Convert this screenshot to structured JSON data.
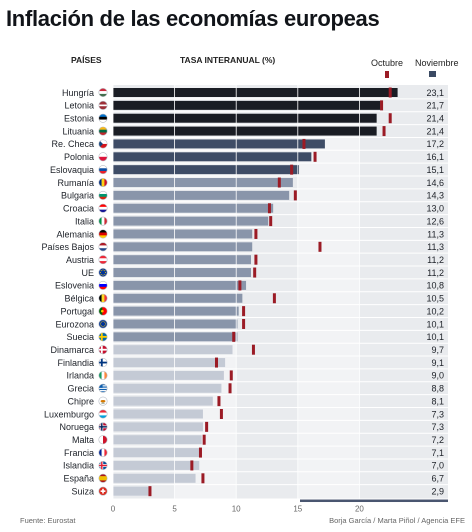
{
  "title": "Inflación de las economías europeas",
  "headers": {
    "countries": "PAÍSES",
    "rate": "TASA INTERANUAL (%)"
  },
  "legend": {
    "october": "Octubre",
    "november": "Noviembre",
    "october_color": "#9b1b25",
    "november_color": "#3b4a63"
  },
  "footer": {
    "source": "Fuente: Eurostat",
    "credits": "Borja García / Marta Piñol / Agencia EFE"
  },
  "colors": {
    "band_light": "#e9ebee",
    "band_mid": "#f2f3f5",
    "bar_tier1": "#1a1d24",
    "bar_tier2": "#3e4c66",
    "bar_tier3": "#8995aa",
    "bar_tier4": "#c4cad5",
    "october_marker": "#9b1b25"
  },
  "chart_data": {
    "type": "bar",
    "orientation": "horizontal",
    "title": "Inflación de las economías europeas",
    "xlabel": "TASA INTERANUAL (%)",
    "xlim": [
      0,
      23.1
    ],
    "xticks": [
      "0",
      "5",
      "10",
      "15",
      "20"
    ],
    "value_labels": [
      "23,1",
      "21,7",
      "21,4",
      "21,4",
      "17,2",
      "16,1",
      "15,1",
      "14,6",
      "14,3",
      "13,0",
      "12,6",
      "11,3",
      "11,3",
      "11,2",
      "11,2",
      "10,8",
      "10,5",
      "10,2",
      "10,1",
      "10,1",
      "9,7",
      "9,1",
      "9,0",
      "8,8",
      "8,1",
      "7,3",
      "7,3",
      "7,2",
      "7,1",
      "7,0",
      "6,7",
      "2,9"
    ],
    "categories": [
      "Hungría",
      "Letonia",
      "Estonia",
      "Lituania",
      "Re. Checa",
      "Polonia",
      "Eslovaquia",
      "Rumanía",
      "Bulgaria",
      "Croacia",
      "Italia",
      "Alemania",
      "Países Bajos",
      "Austria",
      "UE",
      "Eslovenia",
      "Bélgica",
      "Portugal",
      "Eurozona",
      "Suecia",
      "Dinamarca",
      "Finlandia",
      "Irlanda",
      "Grecia",
      "Chipre",
      "Luxemburgo",
      "Noruega",
      "Malta",
      "Francia",
      "Islandia",
      "España",
      "Suiza"
    ],
    "flags": [
      "hungary-flag",
      "latvia-flag",
      "estonia-flag",
      "lithuania-flag",
      "czech-flag",
      "poland-flag",
      "slovakia-flag",
      "romania-flag",
      "bulgaria-flag",
      "croatia-flag",
      "italy-flag",
      "germany-flag",
      "netherlands-flag",
      "austria-flag",
      "eu-flag",
      "slovenia-flag",
      "belgium-flag",
      "portugal-flag",
      "eurozone-flag",
      "sweden-flag",
      "denmark-flag",
      "finland-flag",
      "ireland-flag",
      "greece-flag",
      "cyprus-flag",
      "luxembourg-flag",
      "norway-flag",
      "malta-flag",
      "france-flag",
      "iceland-flag",
      "spain-flag",
      "switzerland-flag"
    ],
    "series": [
      {
        "name": "Noviembre",
        "values": [
          23.1,
          21.7,
          21.4,
          21.4,
          17.2,
          16.1,
          15.1,
          14.6,
          14.3,
          13.0,
          12.6,
          11.3,
          11.3,
          11.2,
          11.2,
          10.8,
          10.5,
          10.2,
          10.1,
          10.1,
          9.7,
          9.1,
          9.0,
          8.8,
          8.1,
          7.3,
          7.3,
          7.2,
          7.1,
          7.0,
          6.7,
          2.9
        ]
      },
      {
        "name": "Octubre",
        "values": [
          22.5,
          21.8,
          22.5,
          22.0,
          15.5,
          16.4,
          14.5,
          13.5,
          14.8,
          12.7,
          12.8,
          11.6,
          16.8,
          11.6,
          11.5,
          10.3,
          13.1,
          10.6,
          10.6,
          9.8,
          11.4,
          8.4,
          9.6,
          9.5,
          8.6,
          8.8,
          7.6,
          7.4,
          7.1,
          6.4,
          7.3,
          3.0
        ]
      }
    ],
    "grid": true,
    "legend": "top-right"
  }
}
